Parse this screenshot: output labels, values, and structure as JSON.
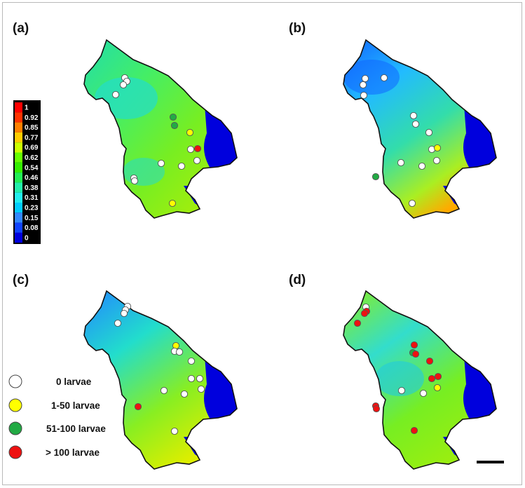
{
  "panels": [
    {
      "label": "(a)"
    },
    {
      "label": "(b)"
    },
    {
      "label": "(c)"
    },
    {
      "label": "(d)"
    }
  ],
  "colorbar": {
    "ticks": [
      "1",
      "0.92",
      "0.85",
      "0.77",
      "0.69",
      "0.62",
      "0.54",
      "0.46",
      "0.38",
      "0.31",
      "0.23",
      "0.15",
      "0.08",
      "0"
    ],
    "colors": [
      "#ff0000",
      "#ff3300",
      "#ff8000",
      "#ffcc00",
      "#ccff00",
      "#66ff00",
      "#33ee00",
      "#22ee55",
      "#22eeaa",
      "#22eeee",
      "#00ccff",
      "#3388ff",
      "#1144ff",
      "#0000dd"
    ]
  },
  "legend": {
    "items": [
      {
        "label": "0 larvae",
        "color": "#ffffff"
      },
      {
        "label": "1-50 larvae",
        "color": "#ffff00"
      },
      {
        "label": "51-100 larvae",
        "color": "#22aa44"
      },
      {
        "label": "> 100 larvae",
        "color": "#ee1111"
      }
    ]
  }
}
